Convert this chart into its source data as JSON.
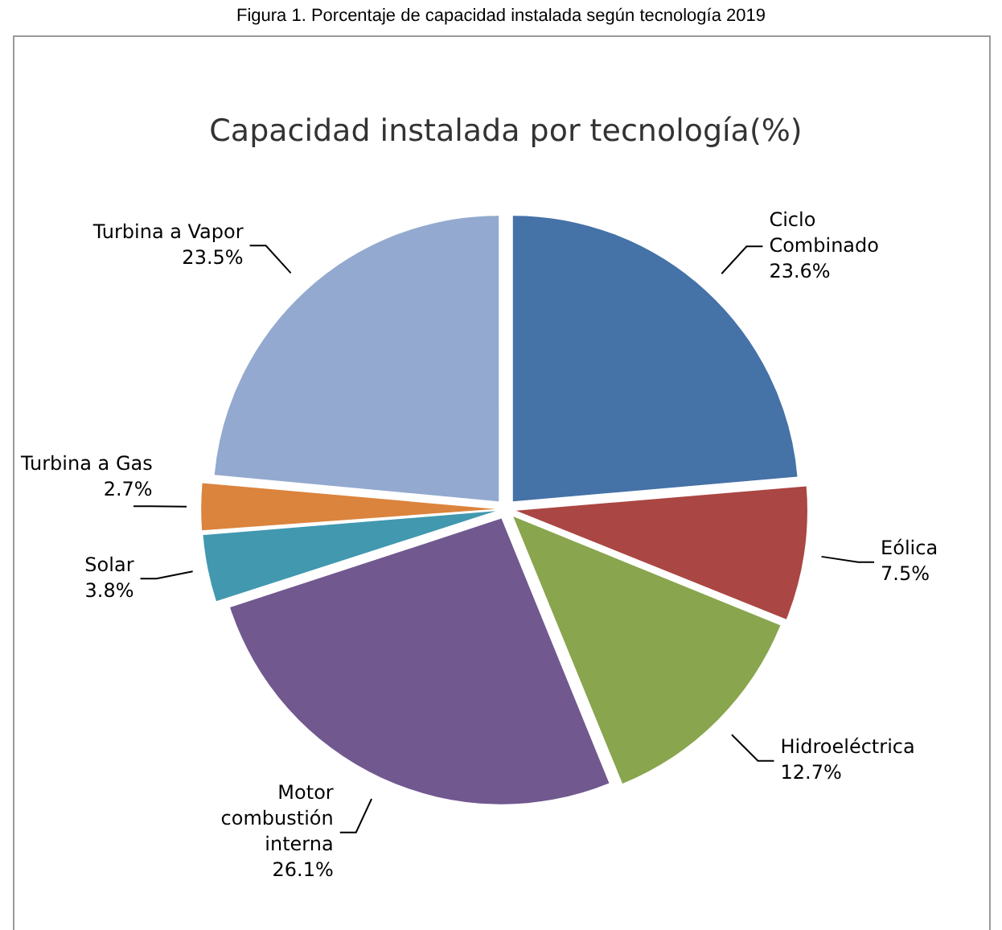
{
  "chart_data": {
    "type": "pie",
    "title": "Capacidad instalada por tecnología(%)",
    "subtitle": "Figura 1. Porcentaje de capacidad instalada según tecnología 2019",
    "categories": [
      "Ciclo Combinado",
      "Eólica",
      "Hidroeléctrica",
      "Motor combustión interna",
      "Solar",
      "Turbina a Gas",
      "Turbina a Vapor"
    ],
    "values": [
      23.6,
      7.5,
      12.7,
      26.1,
      3.8,
      2.7,
      23.5
    ],
    "value_labels": [
      "23.6%",
      "7.5%",
      "12.7%",
      "26.1%",
      "3.8%",
      "2.7%",
      "23.5%"
    ],
    "colors": [
      "#4572a7",
      "#aa4643",
      "#89a54e",
      "#71588f",
      "#4198af",
      "#db843d",
      "#93a9cf"
    ],
    "legend": false
  }
}
